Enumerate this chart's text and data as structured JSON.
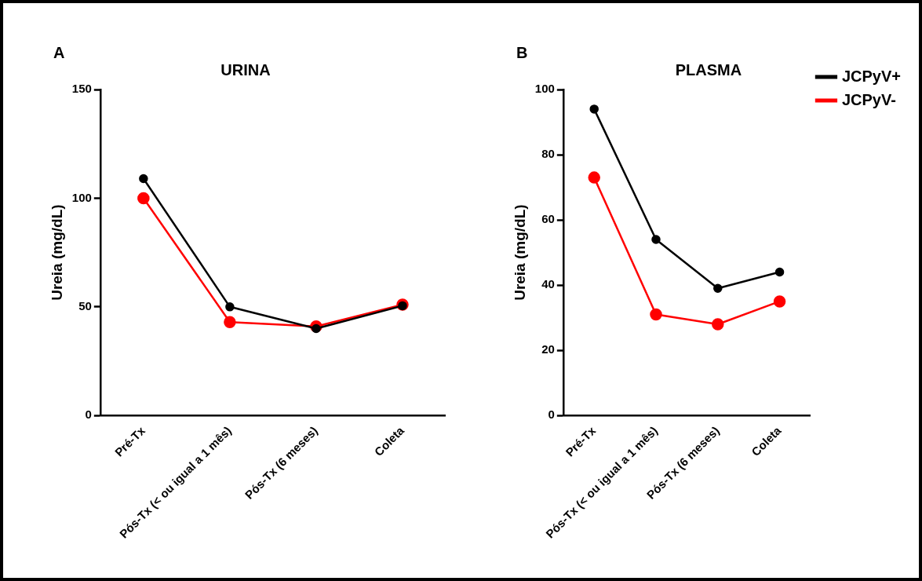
{
  "chart_data": [
    {
      "type": "line",
      "title": "URINA",
      "ylabel": "Ureia (mg/dL)",
      "annotations": [
        "A"
      ],
      "categories": [
        "Pré-Tx",
        "Pós-Tx (< ou igual a 1 mês)",
        "Pós-Tx (6 meses)",
        "Coleta"
      ],
      "ylim": [
        0,
        150
      ],
      "yticks": [
        0,
        50,
        100,
        150
      ],
      "grid": false,
      "legend": false,
      "marker": "circle",
      "series": [
        {
          "color": "#000000",
          "values": [
            109,
            50,
            40,
            50.5
          ]
        },
        {
          "color": "#ff0000",
          "values": [
            100,
            43,
            41,
            51
          ]
        }
      ]
    },
    {
      "type": "line",
      "title": "PLASMA",
      "ylabel": "Ureia (mg/dL)",
      "annotations": [
        "B"
      ],
      "categories": [
        "Pré-Tx",
        "Pós-Tx (< ou igual a 1 mês)",
        "Pós-Tx (6 meses)",
        "Coleta"
      ],
      "ylim": [
        0,
        100
      ],
      "yticks": [
        0,
        20,
        40,
        60,
        80,
        100
      ],
      "grid": false,
      "legend": "top right",
      "marker": "circle",
      "series": [
        {
          "name": "JCPyV+",
          "color": "#000000",
          "values": [
            94,
            54,
            39,
            44
          ]
        },
        {
          "name": "JCPyV-",
          "color": "#ff0000",
          "values": [
            73,
            31,
            28,
            35
          ]
        }
      ]
    }
  ]
}
